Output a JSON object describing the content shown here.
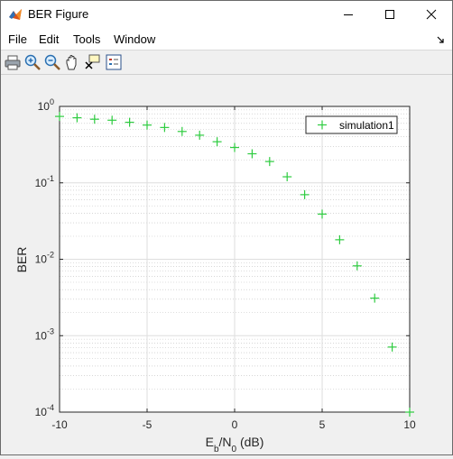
{
  "window": {
    "title": "BER Figure",
    "controls": [
      "minimize",
      "maximize",
      "close"
    ]
  },
  "menubar": {
    "items": [
      "File",
      "Edit",
      "Tools",
      "Window"
    ]
  },
  "toolbar": {
    "tools": [
      "print-icon",
      "zoom-in-icon",
      "zoom-out-icon",
      "pan-icon",
      "data-cursor-icon",
      "legend-icon"
    ]
  },
  "chart_data": {
    "type": "scatter",
    "title": "",
    "xlabel": "E_b/N_0 (dB)",
    "ylabel": "BER",
    "xlim": [
      -10,
      10
    ],
    "ylim": [
      0.0001,
      1
    ],
    "yscale": "log",
    "grid": true,
    "minor_grid": true,
    "legend": "top-right",
    "xticks": [
      "-10",
      "-5",
      "0",
      "5",
      "10"
    ],
    "yticks": [
      "10^0",
      "10^-1",
      "10^-2",
      "10^-3",
      "10^-4"
    ],
    "series": [
      {
        "name": "simulation1",
        "marker": "+",
        "color": "#2ecc40",
        "x": [
          -10,
          -9,
          -8,
          -7,
          -6,
          -5,
          -4,
          -3,
          -2,
          -1,
          0,
          1,
          2,
          3,
          4,
          5,
          6,
          7,
          8,
          9,
          10
        ],
        "y": [
          0.74,
          0.71,
          0.68,
          0.66,
          0.62,
          0.57,
          0.53,
          0.47,
          0.42,
          0.345,
          0.29,
          0.24,
          0.19,
          0.12,
          0.07,
          0.039,
          0.018,
          0.0082,
          0.0031,
          0.00071,
          0.0001
        ]
      }
    ]
  }
}
